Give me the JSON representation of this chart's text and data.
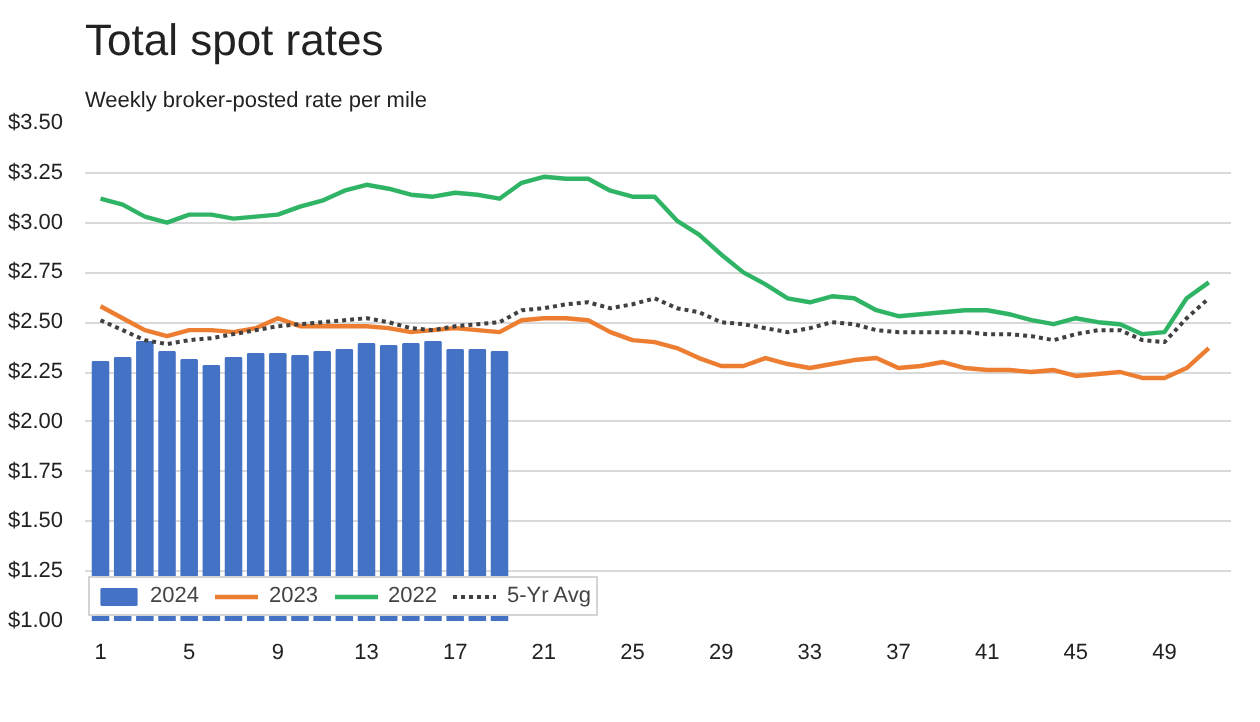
{
  "chart_data": {
    "type": "line",
    "title": "Total spot rates",
    "subtitle": "Weekly broker-posted rate per mile",
    "x": [
      1,
      2,
      3,
      4,
      5,
      6,
      7,
      8,
      9,
      10,
      11,
      12,
      13,
      14,
      15,
      16,
      17,
      18,
      19,
      20,
      21,
      22,
      23,
      24,
      25,
      26,
      27,
      28,
      29,
      30,
      31,
      32,
      33,
      34,
      35,
      36,
      37,
      38,
      39,
      40,
      41,
      42,
      43,
      44,
      45,
      46,
      47,
      48,
      49,
      50,
      51
    ],
    "xlim": [
      0.3,
      52
    ],
    "xticks": [
      1,
      5,
      9,
      13,
      17,
      21,
      25,
      29,
      33,
      37,
      41,
      45,
      49
    ],
    "ylim": [
      1.0,
      3.5
    ],
    "yticks": [
      {
        "value": 1.0,
        "label": "$1.00"
      },
      {
        "value": 1.25,
        "label": "$1.25"
      },
      {
        "value": 1.5,
        "label": "$1.50"
      },
      {
        "value": 1.75,
        "label": "$1.75"
      },
      {
        "value": 2.0,
        "label": "$2.00"
      },
      {
        "value": 2.25,
        "label": "$2.25"
      },
      {
        "value": 2.5,
        "label": "$2.50"
      },
      {
        "value": 2.75,
        "label": "$2.75"
      },
      {
        "value": 3.0,
        "label": "$3.00"
      },
      {
        "value": 3.25,
        "label": "$3.25"
      },
      {
        "value": 3.5,
        "label": "$3.50"
      }
    ],
    "grid": "y",
    "legend": "bottom left",
    "series": [
      {
        "name": "2024",
        "type": "bar",
        "color": "#4472c4",
        "x": [
          1,
          2,
          3,
          4,
          5,
          6,
          7,
          8,
          9,
          10,
          11,
          12,
          13,
          14,
          15,
          16,
          17,
          18,
          19
        ],
        "values": [
          2.3,
          2.32,
          2.4,
          2.35,
          2.31,
          2.28,
          2.32,
          2.34,
          2.34,
          2.33,
          2.35,
          2.36,
          2.39,
          2.38,
          2.39,
          2.4,
          2.36,
          2.36,
          2.35
        ]
      },
      {
        "name": "2023",
        "color": "#ed7d31",
        "line_style": "solid",
        "values": [
          2.58,
          2.52,
          2.46,
          2.43,
          2.46,
          2.46,
          2.45,
          2.47,
          2.52,
          2.48,
          2.48,
          2.48,
          2.48,
          2.47,
          2.45,
          2.46,
          2.47,
          2.46,
          2.45,
          2.51,
          2.52,
          2.52,
          2.51,
          2.45,
          2.41,
          2.4,
          2.37,
          2.32,
          2.28,
          2.28,
          2.32,
          2.29,
          2.27,
          2.29,
          2.31,
          2.32,
          2.27,
          2.28,
          2.3,
          2.27,
          2.26,
          2.26,
          2.25,
          2.26,
          2.23,
          2.24,
          2.25,
          2.22,
          2.22,
          2.27,
          2.37
        ]
      },
      {
        "name": "2022",
        "color": "#2fb466",
        "line_style": "solid",
        "values": [
          3.12,
          3.09,
          3.03,
          3.0,
          3.04,
          3.04,
          3.02,
          3.03,
          3.04,
          3.08,
          3.11,
          3.16,
          3.19,
          3.17,
          3.14,
          3.13,
          3.15,
          3.14,
          3.12,
          3.2,
          3.23,
          3.22,
          3.22,
          3.16,
          3.13,
          3.13,
          3.01,
          2.94,
          2.84,
          2.75,
          2.69,
          2.62,
          2.6,
          2.63,
          2.62,
          2.56,
          2.53,
          2.54,
          2.55,
          2.56,
          2.56,
          2.54,
          2.51,
          2.49,
          2.52,
          2.5,
          2.49,
          2.44,
          2.45,
          2.62,
          2.7
        ]
      },
      {
        "name": "5-Yr Avg",
        "color": "#404040",
        "line_style": "dotted",
        "values": [
          2.51,
          2.46,
          2.41,
          2.39,
          2.41,
          2.42,
          2.44,
          2.46,
          2.48,
          2.49,
          2.5,
          2.51,
          2.52,
          2.5,
          2.47,
          2.46,
          2.48,
          2.49,
          2.5,
          2.56,
          2.57,
          2.59,
          2.6,
          2.57,
          2.59,
          2.62,
          2.57,
          2.55,
          2.5,
          2.49,
          2.47,
          2.45,
          2.47,
          2.5,
          2.49,
          2.46,
          2.45,
          2.45,
          2.45,
          2.45,
          2.44,
          2.44,
          2.43,
          2.41,
          2.44,
          2.46,
          2.46,
          2.41,
          2.4,
          2.52,
          2.62
        ]
      }
    ]
  }
}
